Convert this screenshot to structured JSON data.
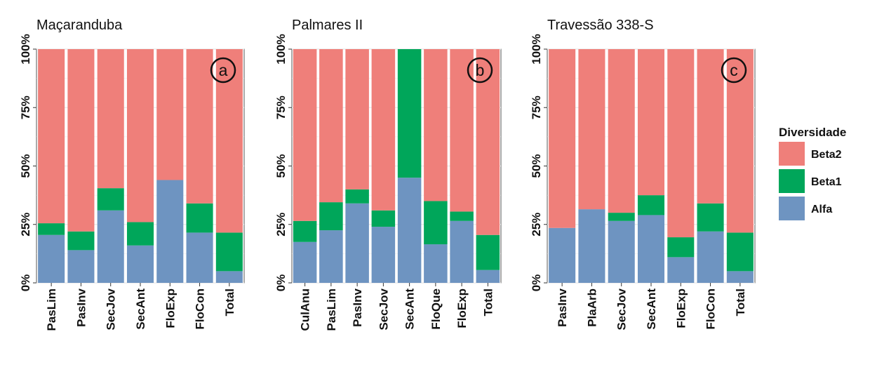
{
  "legend": {
    "title": "Diversidade",
    "items": [
      {
        "label": "Beta2",
        "color": "#EF7F7A"
      },
      {
        "label": "Beta1",
        "color": "#00A65A"
      },
      {
        "label": "Alfa",
        "color": "#6E94C1"
      }
    ]
  },
  "y_ticks": [
    "0%",
    "25%",
    "50%",
    "75%",
    "100%"
  ],
  "chart_data": [
    {
      "type": "bar",
      "stacked": true,
      "title": "Maçaranduba",
      "tag": "a",
      "categories": [
        "PasLim",
        "PasInv",
        "SecJov",
        "SecAnt",
        "FloExp",
        "FloCon",
        "Total"
      ],
      "series": [
        {
          "name": "Alfa",
          "values": [
            20.5,
            14.0,
            31.0,
            16.0,
            44.0,
            21.5,
            5.0
          ]
        },
        {
          "name": "Beta1",
          "values": [
            5.0,
            8.0,
            9.5,
            10.0,
            0.0,
            12.5,
            16.5
          ]
        },
        {
          "name": "Beta2",
          "values": [
            74.5,
            78.0,
            59.5,
            74.0,
            56.0,
            66.0,
            78.5
          ]
        }
      ],
      "ylim": [
        0,
        100
      ],
      "grid": true
    },
    {
      "type": "bar",
      "stacked": true,
      "title": "Palmares II",
      "tag": "b",
      "categories": [
        "CulAnu",
        "PasLim",
        "PasInv",
        "SecJov",
        "SecAnt",
        "FloQue",
        "FloExp",
        "Total"
      ],
      "series": [
        {
          "name": "Alfa",
          "values": [
            17.5,
            22.5,
            34.0,
            24.0,
            45.0,
            16.5,
            26.5,
            5.5
          ]
        },
        {
          "name": "Beta1",
          "values": [
            9.0,
            12.0,
            6.0,
            7.0,
            55.0,
            18.5,
            4.0,
            15.0
          ]
        },
        {
          "name": "Beta2",
          "values": [
            73.5,
            65.5,
            60.0,
            69.0,
            0.0,
            65.0,
            69.5,
            79.5
          ]
        }
      ],
      "ylim": [
        0,
        100
      ],
      "grid": true
    },
    {
      "type": "bar",
      "stacked": true,
      "title": "Travessão 338-S",
      "tag": "c",
      "categories": [
        "PasInv",
        "PlaArb",
        "SecJov",
        "SecAnt",
        "FloExp",
        "FloCon",
        "Total"
      ],
      "series": [
        {
          "name": "Alfa",
          "values": [
            23.5,
            31.5,
            26.5,
            29.0,
            11.0,
            22.0,
            5.0
          ]
        },
        {
          "name": "Beta1",
          "values": [
            0.0,
            0.0,
            3.5,
            8.5,
            8.5,
            12.0,
            16.5
          ]
        },
        {
          "name": "Beta2",
          "values": [
            76.5,
            68.5,
            70.0,
            62.5,
            80.5,
            66.0,
            78.5
          ]
        }
      ],
      "ylim": [
        0,
        100
      ],
      "grid": true
    }
  ]
}
